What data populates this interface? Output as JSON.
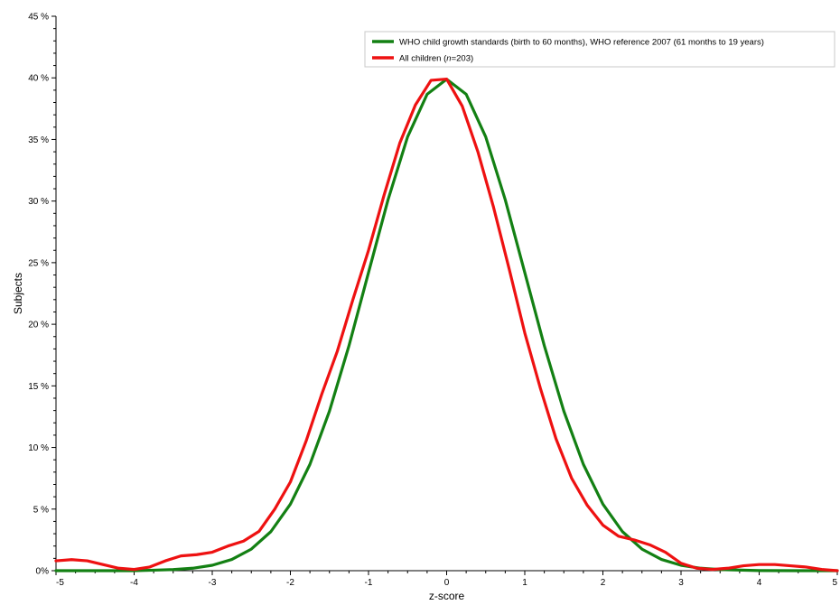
{
  "chart_data": {
    "type": "line",
    "xlabel": "z-score",
    "ylabel": "Subjects",
    "xlim": [
      -5,
      5
    ],
    "ylim": [
      0,
      45
    ],
    "x_ticks": [
      -5,
      -4,
      -3,
      -2,
      -1,
      0,
      1,
      2,
      3,
      4,
      5
    ],
    "x_tick_labels": [
      "-5",
      "-4",
      "-3",
      "-2",
      "-1",
      "0",
      "1",
      "2",
      "3",
      "4",
      "5"
    ],
    "y_ticks": [
      0,
      5,
      10,
      15,
      20,
      25,
      30,
      35,
      40,
      45
    ],
    "y_tick_labels": [
      "0%",
      "5 %",
      "10 %",
      "15 %",
      "20 %",
      "25 %",
      "30 %",
      "35 %",
      "40 %",
      "45 %"
    ],
    "grid": false,
    "legend_position": "top-right",
    "series": [
      {
        "name": "WHO child growth standards (birth to 60 months), WHO reference 2007 (61 months to 19 years)",
        "color": "#138013",
        "x": [
          -5,
          -4.5,
          -4,
          -3.75,
          -3.5,
          -3.25,
          -3,
          -2.75,
          -2.5,
          -2.25,
          -2,
          -1.75,
          -1.5,
          -1.25,
          -1,
          -0.75,
          -0.5,
          -0.25,
          0,
          0.25,
          0.5,
          0.75,
          1,
          1.25,
          1.5,
          1.75,
          2,
          2.25,
          2.5,
          2.75,
          3,
          3.25,
          3.5,
          4,
          4.5,
          5
        ],
        "y": [
          0,
          0,
          0,
          0.04,
          0.09,
          0.2,
          0.44,
          0.91,
          1.75,
          3.17,
          5.4,
          8.63,
          12.95,
          18.26,
          24.2,
          30.11,
          35.21,
          38.67,
          39.89,
          38.67,
          35.21,
          30.11,
          24.2,
          18.26,
          12.95,
          8.63,
          5.4,
          3.17,
          1.75,
          0.91,
          0.44,
          0.2,
          0.09,
          0.01,
          0,
          0
        ]
      },
      {
        "name": "All children (n=203)",
        "color": "#ee1111",
        "x": [
          -5,
          -4.8,
          -4.6,
          -4.4,
          -4.2,
          -4,
          -3.8,
          -3.6,
          -3.4,
          -3.2,
          -3,
          -2.8,
          -2.6,
          -2.4,
          -2.2,
          -2,
          -1.8,
          -1.6,
          -1.4,
          -1.2,
          -1,
          -0.8,
          -0.6,
          -0.4,
          -0.2,
          0,
          0.2,
          0.4,
          0.6,
          0.8,
          1,
          1.2,
          1.4,
          1.6,
          1.8,
          2,
          2.2,
          2.4,
          2.6,
          2.8,
          3,
          3.2,
          3.4,
          3.6,
          3.8,
          4,
          4.2,
          4.4,
          4.6,
          4.8,
          5
        ],
        "y": [
          0.8,
          0.9,
          0.8,
          0.5,
          0.2,
          0.1,
          0.3,
          0.8,
          1.2,
          1.3,
          1.5,
          2,
          2.4,
          3.2,
          5,
          7.2,
          10.5,
          14.3,
          17.8,
          22,
          26,
          30.5,
          34.7,
          37.8,
          39.8,
          39.9,
          37.7,
          34,
          29.5,
          24.5,
          19.3,
          14.8,
          10.7,
          7.5,
          5.3,
          3.7,
          2.8,
          2.5,
          2.1,
          1.5,
          0.6,
          0.2,
          0.1,
          0.2,
          0.4,
          0.5,
          0.5,
          0.4,
          0.3,
          0.1,
          0
        ]
      }
    ],
    "legend": {
      "green_label": "WHO child growth standards (birth to 60 months), WHO reference 2007 (61 months to 19 years)",
      "red_prefix": "All children (",
      "red_n": "n",
      "red_suffix": "=203)"
    }
  }
}
